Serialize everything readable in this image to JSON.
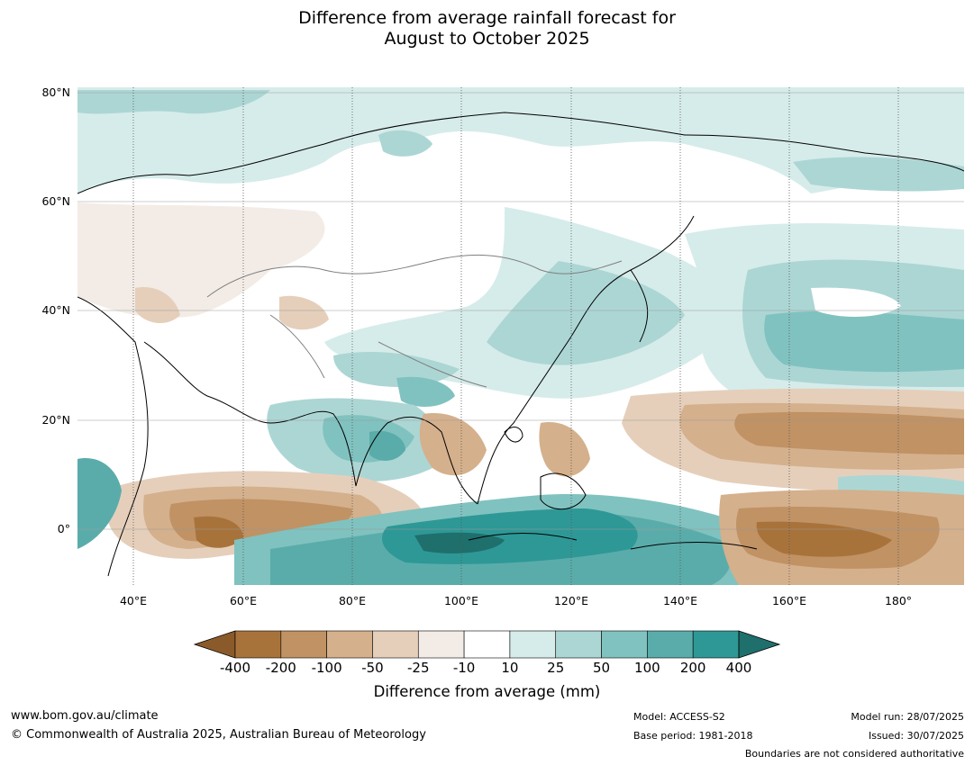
{
  "title": {
    "line1": "Difference from average rainfall forecast for",
    "line2": "August to October 2025"
  },
  "map": {
    "lat_labels": [
      "80°N",
      "60°N",
      "40°N",
      "20°N",
      "0°"
    ],
    "lon_labels": [
      "40°E",
      "60°E",
      "80°E",
      "100°E",
      "120°E",
      "140°E",
      "160°E",
      "180°"
    ],
    "colors": {
      "ocean_neutral": "#ffffff",
      "land_border": "#000000",
      "country_border": "#7f7f7f"
    }
  },
  "colorbar": {
    "labels": [
      "-400",
      "-200",
      "-100",
      "-50",
      "-25",
      "-10",
      "10",
      "25",
      "50",
      "100",
      "200",
      "400"
    ],
    "colors": [
      "#8b5a2b",
      "#a8733b",
      "#c09264",
      "#d4b08c",
      "#e5cfbb",
      "#f3ece6",
      "#ffffff",
      "#d6ecea",
      "#acd6d4",
      "#80c2bf",
      "#5aacaa",
      "#2e9896",
      "#1f6f6c"
    ],
    "title": "Difference from average (mm)"
  },
  "footer": {
    "url": "www.bom.gov.au/climate",
    "copyright": "© Commonwealth of Australia 2025, Australian Bureau of Meteorology",
    "model": "Model: ACCESS-S2",
    "base_period": "Base period: 1981-2018",
    "model_run": "Model run: 28/07/2025",
    "issued": "Issued: 30/07/2025",
    "disclaimer": "Boundaries are not considered authoritative"
  }
}
